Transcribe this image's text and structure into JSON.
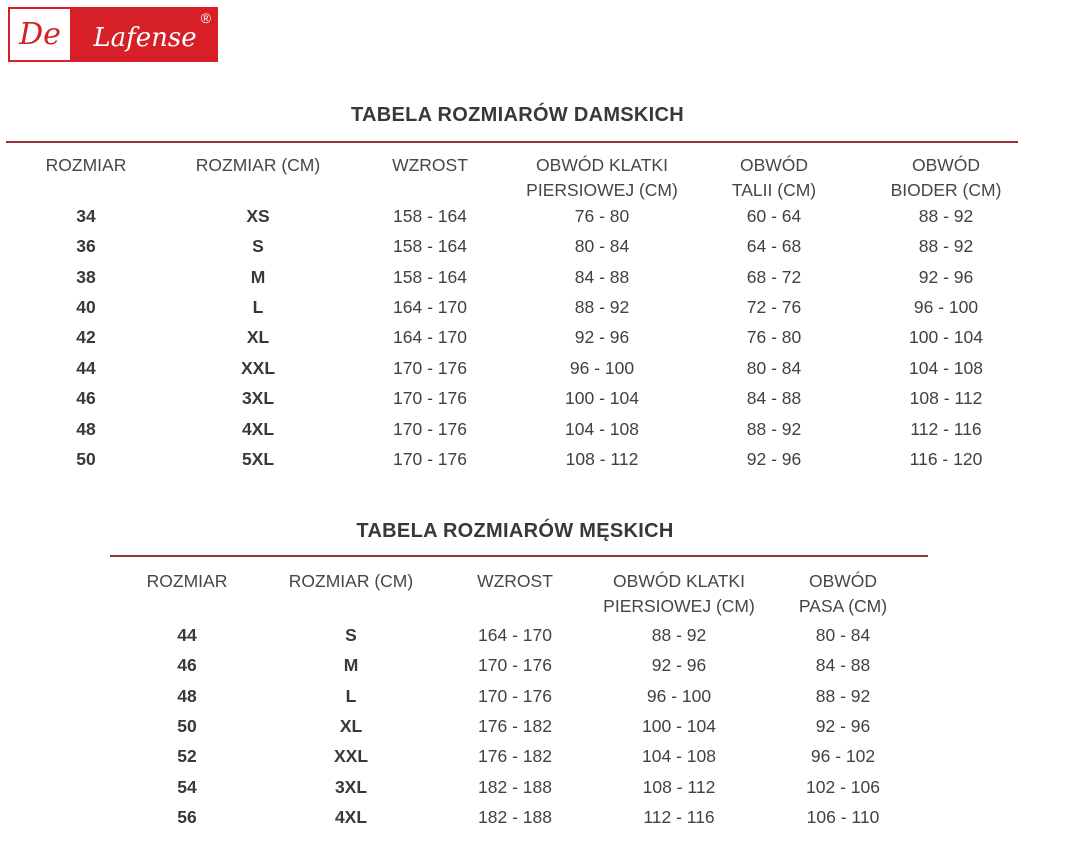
{
  "logo": {
    "brand_prefix": "De",
    "brand_name": "Lafense",
    "registered": "®"
  },
  "colors": {
    "brand_red": "#d61f26",
    "rule_red": "#963438",
    "text_dark": "#3f4146"
  },
  "tables": {
    "women": {
      "title": "TABELA ROZMIARÓW DAMSKICH",
      "headers": [
        {
          "line1": "ROZMIAR",
          "line2": ""
        },
        {
          "line1": "ROZMIAR (CM)",
          "line2": ""
        },
        {
          "line1": "WZROST",
          "line2": ""
        },
        {
          "line1": "OBWÓD KLATKI",
          "line2": "PIERSIOWEJ (CM)"
        },
        {
          "line1": "OBWÓD",
          "line2": "TALII (CM)"
        },
        {
          "line1": "OBWÓD",
          "line2": "BIODER (CM)"
        }
      ],
      "rows": [
        [
          "34",
          "XS",
          "158 - 164",
          "76 - 80",
          "60 - 64",
          "88 - 92"
        ],
        [
          "36",
          "S",
          "158 - 164",
          "80 - 84",
          "64 - 68",
          "88 - 92"
        ],
        [
          "38",
          "M",
          "158 - 164",
          "84 - 88",
          "68 - 72",
          "92 - 96"
        ],
        [
          "40",
          "L",
          "164 - 170",
          "88 - 92",
          "72 - 76",
          "96 - 100"
        ],
        [
          "42",
          "XL",
          "164 - 170",
          "92 - 96",
          "76 - 80",
          "100 - 104"
        ],
        [
          "44",
          "XXL",
          "170 - 176",
          "96 - 100",
          "80 - 84",
          "104 - 108"
        ],
        [
          "46",
          "3XL",
          "170 - 176",
          "100 - 104",
          "84 - 88",
          "108 - 112"
        ],
        [
          "48",
          "4XL",
          "170 - 176",
          "104 - 108",
          "88 - 92",
          "112 - 116"
        ],
        [
          "50",
          "5XL",
          "170 - 176",
          "108 - 112",
          "92 - 96",
          "116 - 120"
        ]
      ]
    },
    "men": {
      "title": "TABELA ROZMIARÓW MĘSKICH",
      "headers": [
        {
          "line1": "ROZMIAR",
          "line2": ""
        },
        {
          "line1": "ROZMIAR (CM)",
          "line2": ""
        },
        {
          "line1": "WZROST",
          "line2": ""
        },
        {
          "line1": "OBWÓD KLATKI",
          "line2": "PIERSIOWEJ (CM)"
        },
        {
          "line1": "OBWÓD",
          "line2": "PASA (CM)"
        }
      ],
      "rows": [
        [
          "44",
          "S",
          "164 - 170",
          "88 - 92",
          "80 - 84"
        ],
        [
          "46",
          "M",
          "170 - 176",
          "92 - 96",
          "84 - 88"
        ],
        [
          "48",
          "L",
          "170 - 176",
          "96 - 100",
          "88 - 92"
        ],
        [
          "50",
          "XL",
          "176 - 182",
          "100 - 104",
          "92 - 96"
        ],
        [
          "52",
          "XXL",
          "176 - 182",
          "104 - 108",
          "96 - 102"
        ],
        [
          "54",
          "3XL",
          "182 - 188",
          "108 - 112",
          "102 - 106"
        ],
        [
          "56",
          "4XL",
          "182 - 188",
          "112 - 116",
          "106 - 110"
        ]
      ]
    }
  }
}
